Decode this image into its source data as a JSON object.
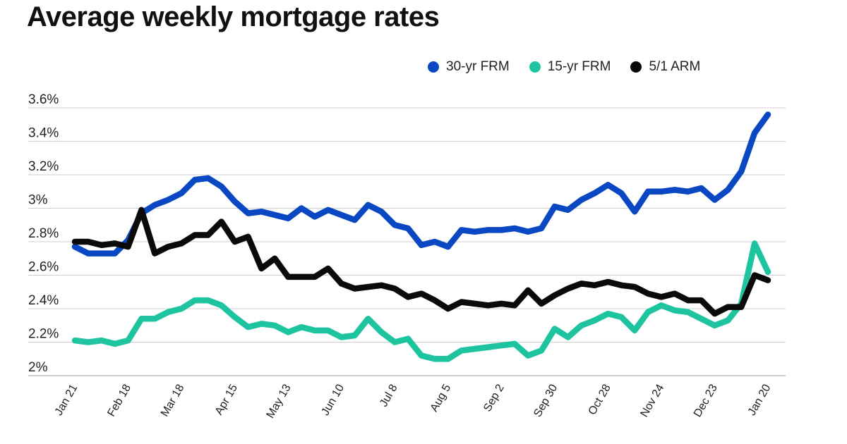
{
  "chart_data": {
    "type": "line",
    "title": "Average weekly mortgage rates",
    "xlabel": "",
    "ylabel": "",
    "ylim": [
      2.0,
      3.6
    ],
    "y_ticks": [
      {
        "value": 2.0,
        "label": "2%"
      },
      {
        "value": 2.2,
        "label": "2.2%"
      },
      {
        "value": 2.4,
        "label": "2.4%"
      },
      {
        "value": 2.6,
        "label": "2.6%"
      },
      {
        "value": 2.8,
        "label": "2.8%"
      },
      {
        "value": 3.0,
        "label": "3%"
      },
      {
        "value": 3.2,
        "label": "3.2%"
      },
      {
        "value": 3.4,
        "label": "3.4%"
      },
      {
        "value": 3.6,
        "label": "3.6%"
      }
    ],
    "x_tick_labels": [
      {
        "index": 0,
        "label": "Jan 21"
      },
      {
        "index": 4,
        "label": "Feb 18"
      },
      {
        "index": 8,
        "label": "Mar 18"
      },
      {
        "index": 12,
        "label": "Apr 15"
      },
      {
        "index": 16,
        "label": "May 13"
      },
      {
        "index": 20,
        "label": "Jun 10"
      },
      {
        "index": 24,
        "label": "Jul 8"
      },
      {
        "index": 28,
        "label": "Aug 5"
      },
      {
        "index": 32,
        "label": "Sep 2"
      },
      {
        "index": 36,
        "label": "Sep 30"
      },
      {
        "index": 40,
        "label": "Oct 28"
      },
      {
        "index": 44,
        "label": "Nov 24"
      },
      {
        "index": 48,
        "label": "Dec 23"
      },
      {
        "index": 52,
        "label": "Jan 20"
      }
    ],
    "grid": true,
    "legend_position": "top-right",
    "series": [
      {
        "name": "30-yr FRM",
        "color": "#0a47c2",
        "values": [
          2.77,
          2.73,
          2.73,
          2.73,
          2.81,
          2.97,
          3.02,
          3.05,
          3.09,
          3.17,
          3.18,
          3.13,
          3.04,
          2.97,
          2.98,
          2.96,
          2.94,
          3.0,
          2.95,
          2.99,
          2.96,
          2.93,
          3.02,
          2.98,
          2.9,
          2.88,
          2.78,
          2.8,
          2.77,
          2.87,
          2.86,
          2.87,
          2.87,
          2.88,
          2.86,
          2.88,
          3.01,
          2.99,
          3.05,
          3.09,
          3.14,
          3.09,
          2.98,
          3.1,
          3.1,
          3.11,
          3.1,
          3.12,
          3.05,
          3.11,
          3.22,
          3.45,
          3.56
        ]
      },
      {
        "name": "15-yr FRM",
        "color": "#1ec4a0",
        "values": [
          2.21,
          2.2,
          2.21,
          2.19,
          2.21,
          2.34,
          2.34,
          2.38,
          2.4,
          2.45,
          2.45,
          2.42,
          2.35,
          2.29,
          2.31,
          2.3,
          2.26,
          2.29,
          2.27,
          2.27,
          2.23,
          2.24,
          2.34,
          2.26,
          2.2,
          2.22,
          2.12,
          2.1,
          2.1,
          2.15,
          2.16,
          2.17,
          2.18,
          2.19,
          2.12,
          2.15,
          2.28,
          2.23,
          2.3,
          2.33,
          2.37,
          2.35,
          2.27,
          2.38,
          2.42,
          2.39,
          2.38,
          2.34,
          2.3,
          2.33,
          2.43,
          2.79,
          2.62
        ]
      },
      {
        "name": "5/1 ARM",
        "color": "#0a0a0a",
        "values": [
          2.8,
          2.8,
          2.78,
          2.79,
          2.77,
          2.99,
          2.73,
          2.77,
          2.79,
          2.84,
          2.84,
          2.92,
          2.8,
          2.83,
          2.64,
          2.7,
          2.59,
          2.59,
          2.59,
          2.64,
          2.55,
          2.52,
          2.53,
          2.54,
          2.52,
          2.47,
          2.49,
          2.45,
          2.4,
          2.44,
          2.43,
          2.42,
          2.43,
          2.42,
          2.51,
          2.43,
          2.48,
          2.52,
          2.55,
          2.54,
          2.56,
          2.54,
          2.53,
          2.49,
          2.47,
          2.49,
          2.45,
          2.45,
          2.37,
          2.41,
          2.41,
          2.6,
          2.57
        ]
      }
    ]
  }
}
